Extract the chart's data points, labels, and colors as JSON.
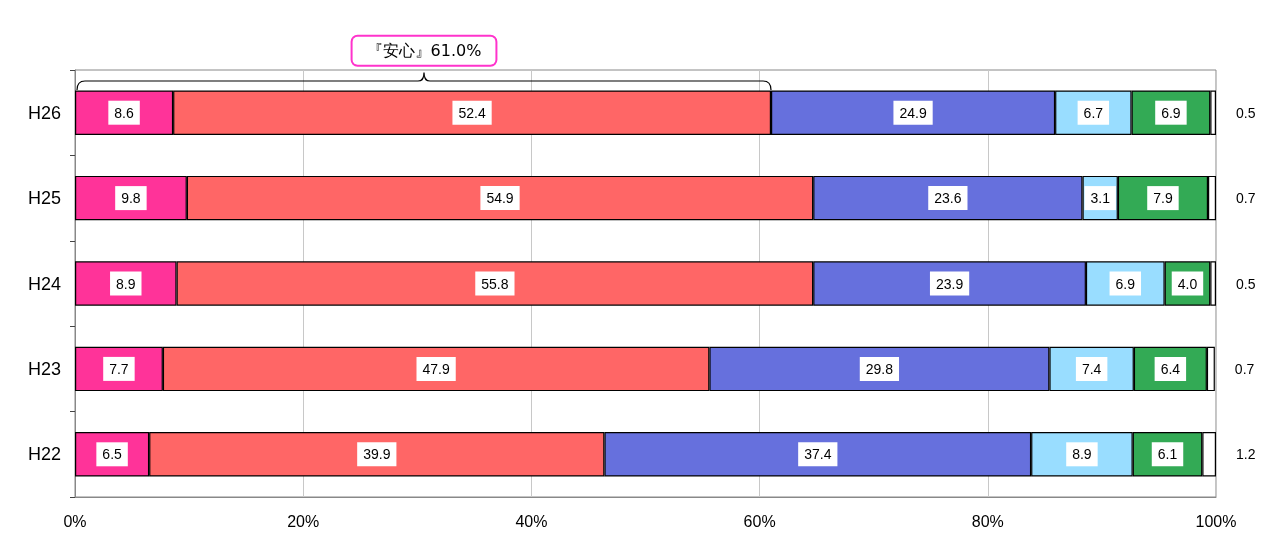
{
  "chart_data": {
    "type": "bar",
    "orientation": "horizontal",
    "stacked": true,
    "categories": [
      "H26",
      "H25",
      "H24",
      "H23",
      "H22"
    ],
    "series": [
      {
        "color": "#ff3399",
        "values": [
          8.6,
          9.8,
          8.9,
          7.7,
          6.5
        ],
        "value_labels": [
          "8.6",
          "9.8",
          "8.9",
          "7.7",
          "6.5"
        ]
      },
      {
        "color": "#ff6666",
        "values": [
          52.4,
          54.9,
          55.8,
          47.9,
          39.9
        ],
        "value_labels": [
          "52.4",
          "54.9",
          "55.8",
          "47.9",
          "39.9"
        ]
      },
      {
        "color": "#6670dd",
        "values": [
          24.9,
          23.6,
          23.9,
          29.8,
          37.4
        ],
        "value_labels": [
          "24.9",
          "23.6",
          "23.9",
          "29.8",
          "37.4"
        ]
      },
      {
        "color": "#99ddff",
        "values": [
          6.7,
          3.1,
          6.9,
          7.4,
          8.9
        ],
        "value_labels": [
          "6.7",
          "3.1",
          "6.9",
          "7.4",
          "8.9"
        ]
      },
      {
        "color": "#33aa55",
        "values": [
          6.9,
          7.9,
          4.0,
          6.4,
          6.1
        ],
        "value_labels": [
          "6.9",
          "7.9",
          "4.0",
          "6.4",
          "6.1"
        ]
      },
      {
        "color": "#ffffff",
        "values": [
          0.5,
          0.7,
          0.5,
          0.7,
          1.2
        ],
        "value_labels": [
          "0.5",
          "0.7",
          "0.5",
          "0.7",
          "1.2"
        ]
      }
    ],
    "xlim": [
      0,
      100
    ],
    "xticks": [
      {
        "value": 0,
        "label": "0%"
      },
      {
        "value": 20,
        "label": "20%"
      },
      {
        "value": 40,
        "label": "40%"
      },
      {
        "value": 60,
        "label": "60%"
      },
      {
        "value": 80,
        "label": "80%"
      },
      {
        "value": 100,
        "label": "100%"
      }
    ],
    "grid": "x",
    "annotations": [
      "『安心』61.0%"
    ]
  }
}
